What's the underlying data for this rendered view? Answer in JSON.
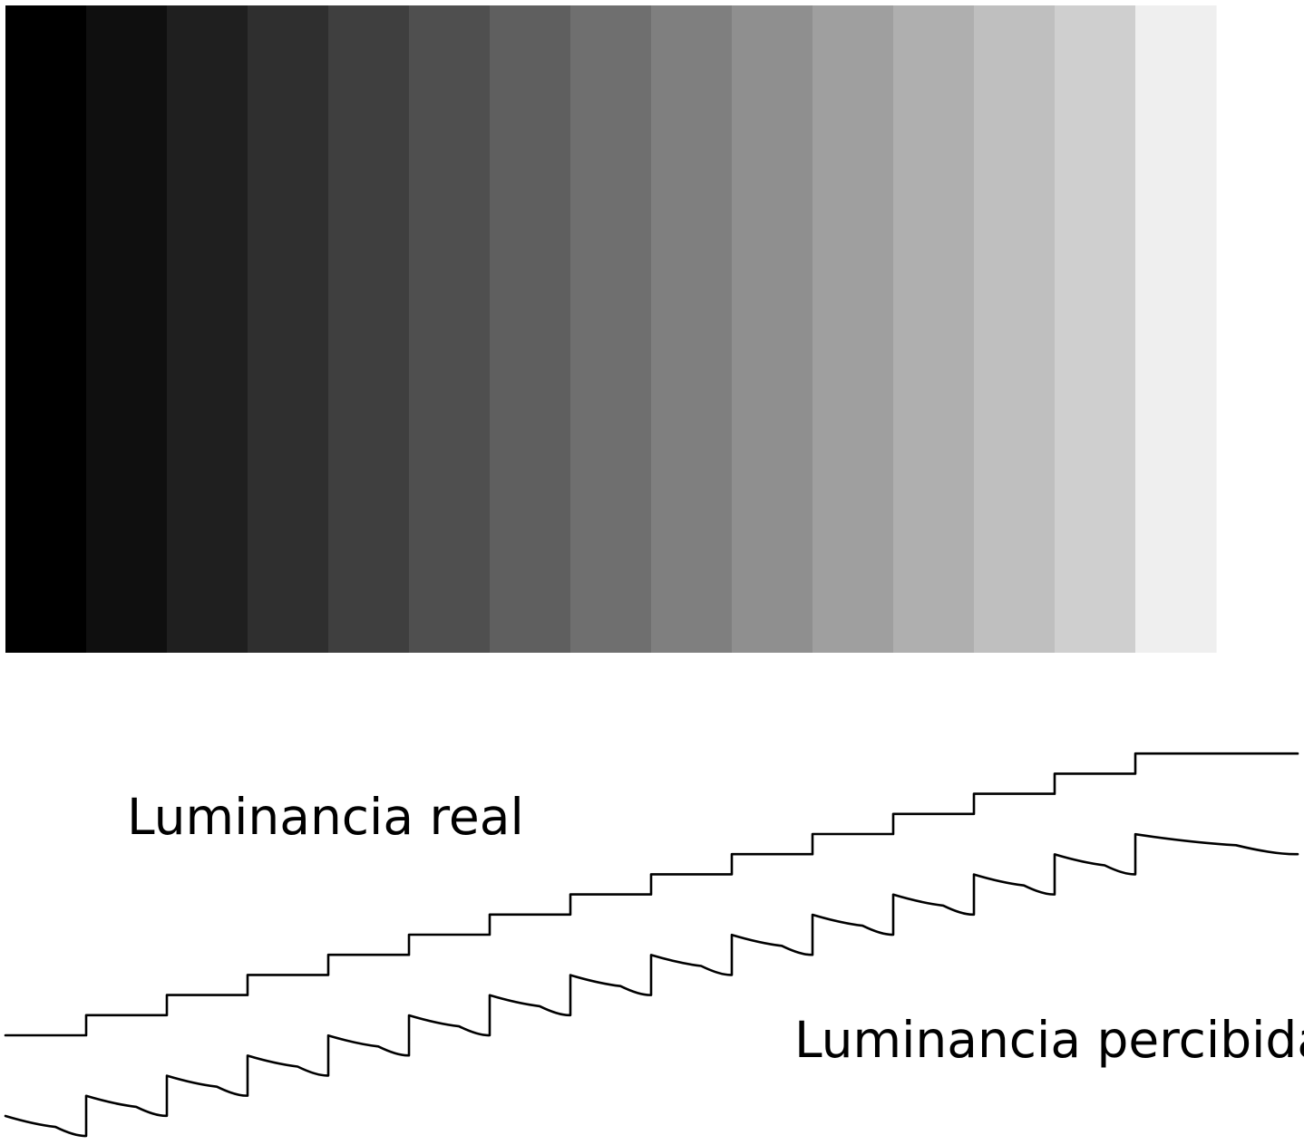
{
  "labels": {
    "real": "Luminancia real",
    "perceived": "Luminancia percibida"
  },
  "band_colors": [
    "#000000",
    "#0f0f0f",
    "#1f1f1f",
    "#2f2f2f",
    "#3f3f3f",
    "#4f4f4f",
    "#5f5f5f",
    "#6f6f6f",
    "#7f7f7f",
    "#8f8f8f",
    "#9f9f9f",
    "#afafaf",
    "#bfbfbf",
    "#cfcfcf",
    "#efefef"
  ],
  "curve_color": "#000000",
  "background_color": "#ffffff"
}
